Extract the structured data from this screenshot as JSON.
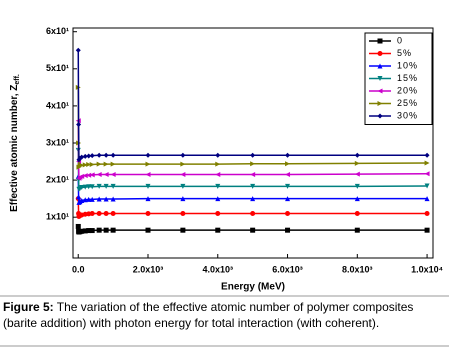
{
  "chart_data": {
    "type": "line",
    "xlabel": "Energy (MeV)",
    "ylabel": "Effective atomic number, Z",
    "ylabel_sub": "eff.",
    "caption_label": "Figure 5:",
    "caption_lines": [
      "The variation of the effective atomic number of polymer composites",
      "(barite addition) with photon energy for total interaction (with coherent)."
    ],
    "x": [
      1,
      10,
      20,
      50,
      100,
      200,
      300,
      400,
      600,
      800,
      1000,
      2000,
      3000,
      4000,
      5000,
      6000,
      8000,
      10000
    ],
    "xlim": [
      -150,
      10170
    ],
    "ylim": [
      -1,
      61
    ],
    "xticks": [
      {
        "value": 0,
        "label": "0.0"
      },
      {
        "value": 2000,
        "label": "2.0x10³"
      },
      {
        "value": 4000,
        "label": "4.0x10³"
      },
      {
        "value": 6000,
        "label": "6.0x10³"
      },
      {
        "value": 8000,
        "label": "8.0x10³"
      },
      {
        "value": 10000,
        "label": "1.0x10⁴"
      }
    ],
    "yticks": [
      {
        "value": 10,
        "label": "1x10¹"
      },
      {
        "value": 20,
        "label": "2x10¹"
      },
      {
        "value": 30,
        "label": "3x10¹"
      },
      {
        "value": 40,
        "label": "4x10¹"
      },
      {
        "value": 50,
        "label": "5x10¹"
      },
      {
        "value": 60,
        "label": "6x10¹"
      }
    ],
    "legend": "upper right",
    "series": [
      {
        "name": "0",
        "color": "#000000",
        "marker": "square",
        "values": [
          7.5,
          6.2,
          6.0,
          6.1,
          6.2,
          6.3,
          6.4,
          6.4,
          6.5,
          6.5,
          6.5,
          6.5,
          6.5,
          6.5,
          6.5,
          6.5,
          6.5,
          6.5
        ]
      },
      {
        "name": "5%",
        "color": "#ff0000",
        "marker": "circle",
        "values": [
          15,
          11,
          10.2,
          10.4,
          10.6,
          10.8,
          10.9,
          11,
          11,
          11,
          11,
          11,
          11,
          11,
          11,
          11,
          11,
          11
        ]
      },
      {
        "name": "10%",
        "color": "#0000ff",
        "marker": "triangle-up",
        "values": [
          21,
          15.5,
          14,
          14.2,
          14.5,
          14.7,
          14.8,
          14.8,
          14.9,
          14.9,
          14.9,
          15,
          15,
          15,
          15,
          15,
          15,
          15
        ]
      },
      {
        "name": "15%",
        "color": "#008080",
        "marker": "triangle-down",
        "values": [
          28,
          20,
          17.5,
          17.7,
          18,
          18.1,
          18.2,
          18.2,
          18.3,
          18.3,
          18.3,
          18.3,
          18.3,
          18.3,
          18.3,
          18.3,
          18.3,
          18.4
        ]
      },
      {
        "name": "20%",
        "color": "#cc00cc",
        "marker": "triangle-left",
        "values": [
          36,
          25,
          20.5,
          20.8,
          21,
          21.2,
          21.3,
          21.4,
          21.5,
          21.5,
          21.5,
          21.5,
          21.5,
          21.5,
          21.5,
          21.5,
          21.6,
          21.7
        ]
      },
      {
        "name": "25%",
        "color": "#808000",
        "marker": "triangle-right",
        "values": [
          45,
          30,
          23.5,
          23.8,
          24,
          24.1,
          24.2,
          24.2,
          24.3,
          24.3,
          24.3,
          24.3,
          24.3,
          24.3,
          24.4,
          24.4,
          24.5,
          24.6
        ]
      },
      {
        "name": "30%",
        "color": "#000080",
        "marker": "diamond",
        "values": [
          55,
          35,
          25.5,
          25.9,
          26.2,
          26.4,
          26.5,
          26.6,
          26.7,
          26.7,
          26.7,
          26.7,
          26.7,
          26.7,
          26.7,
          26.7,
          26.7,
          26.7
        ]
      }
    ]
  }
}
